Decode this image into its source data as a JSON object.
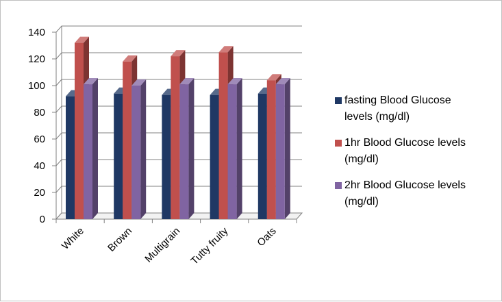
{
  "chart_data": {
    "type": "bar",
    "categories": [
      "White",
      "Brown",
      "Multigrain",
      "Tutty fruity",
      "Oats"
    ],
    "series": [
      {
        "name": "fasting Blood Glucose levels (mg/dl)",
        "values": [
          92,
          94,
          93,
          93,
          94
        ],
        "color": "#1F3864"
      },
      {
        "name": "1hr Blood Glucose levels (mg/dl)",
        "values": [
          132,
          118,
          122,
          125,
          104
        ],
        "color": "#C0504D"
      },
      {
        "name": "2hr Blood Glucose levels (mg/dl)",
        "values": [
          101,
          100,
          101,
          101,
          101
        ],
        "color": "#8064A2"
      }
    ],
    "ylim": [
      0,
      140
    ],
    "yticks": [
      0,
      20,
      40,
      60,
      80,
      100,
      120,
      140
    ],
    "grid": true,
    "legend_position": "right",
    "style": "3d-clustered-column"
  },
  "legend": {
    "items": [
      {
        "line1": "fasting Blood Glucose",
        "line2": "levels (mg/dl)"
      },
      {
        "line1": "1hr Blood Glucose levels",
        "line2": "(mg/dl)"
      },
      {
        "line1": "2hr Blood Glucose levels",
        "line2": "(mg/dl)"
      }
    ]
  }
}
